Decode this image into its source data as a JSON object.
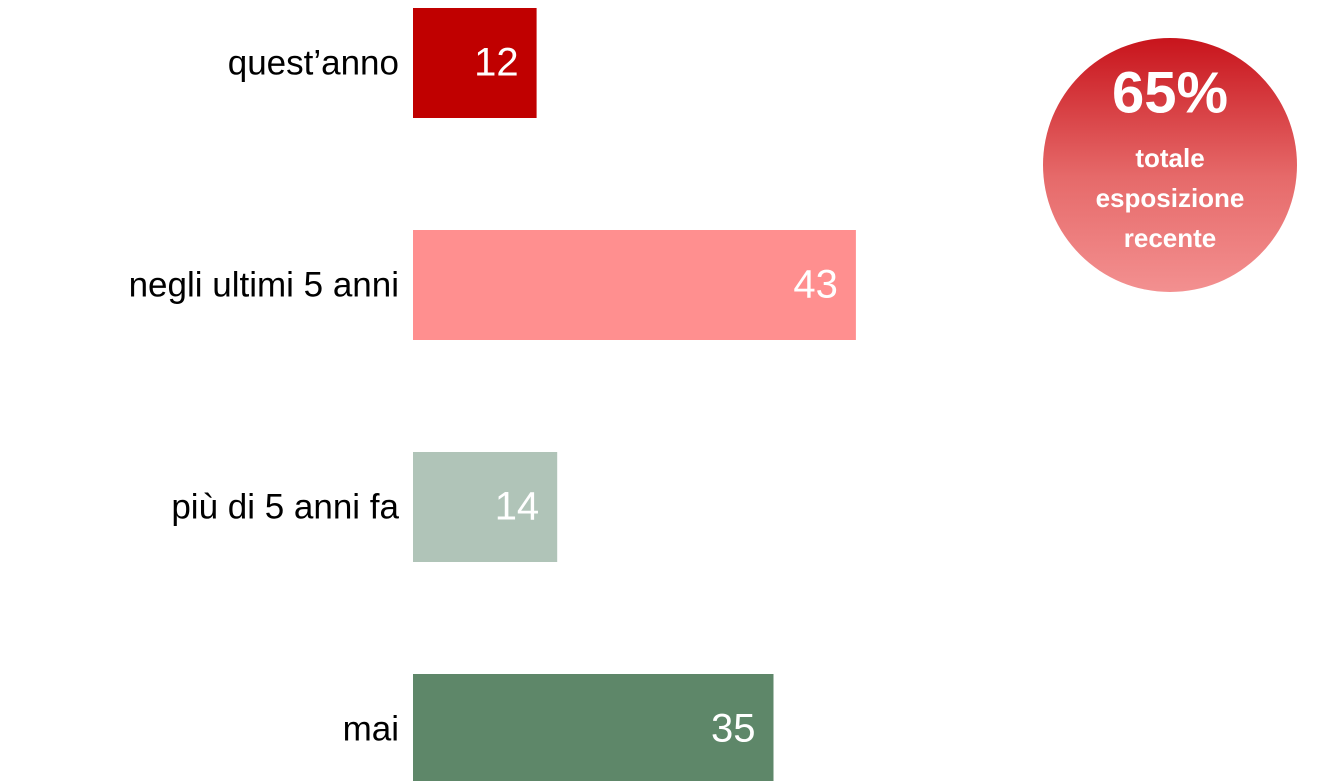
{
  "chart_data": {
    "type": "bar",
    "orientation": "horizontal",
    "categories": [
      "quest’anno",
      "negli ultimi 5 anni",
      "più di 5 anni fa",
      "mai"
    ],
    "values": [
      12,
      43,
      14,
      35
    ],
    "colors": [
      "#c00000",
      "#ff8f8f",
      "#b0c4b8",
      "#5e8769"
    ],
    "annotation": {
      "headline": "65%",
      "lines": [
        "totale",
        "esposizione",
        "recente"
      ]
    }
  }
}
